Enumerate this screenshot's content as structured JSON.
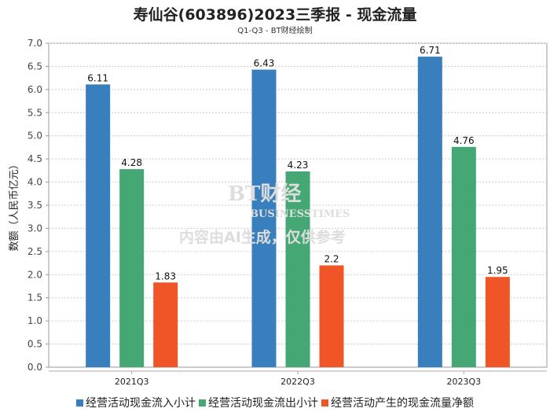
{
  "chart_data": {
    "type": "bar",
    "title": "寿仙谷(603896)2023三季报 - 现金流量",
    "subtitle": "Q1-Q3 - BT财经绘制",
    "xlabel": "",
    "ylabel": "数额（人民币亿元）",
    "ylim": [
      0,
      7.0
    ],
    "yticks": [
      "0.0",
      "0.5",
      "1.0",
      "1.5",
      "2.0",
      "2.5",
      "3.0",
      "3.5",
      "4.0",
      "4.5",
      "5.0",
      "5.5",
      "6.0",
      "6.5",
      "7.0"
    ],
    "categories": [
      "2021Q3",
      "2022Q3",
      "2023Q3"
    ],
    "series": [
      {
        "name": "经营活动现金流入小计",
        "color": "#3a7fbd",
        "values": [
          6.11,
          6.43,
          6.71
        ],
        "labels": [
          "6.11",
          "6.43",
          "6.71"
        ]
      },
      {
        "name": "经营活动现金流出小计",
        "color": "#45a874",
        "values": [
          4.28,
          4.23,
          4.76
        ],
        "labels": [
          "4.28",
          "4.23",
          "4.76"
        ]
      },
      {
        "name": "经营活动产生的现金流量净额",
        "color": "#ef5527",
        "values": [
          1.83,
          2.2,
          1.95
        ],
        "labels": [
          "1.83",
          "2.2",
          "1.95"
        ]
      }
    ],
    "grid": true,
    "legend_position": "bottom"
  },
  "watermark": {
    "brand": "BT财经",
    "brand_en": "BUSINESSTIMES",
    "notice": "内容由AI生成，仅供参考"
  }
}
